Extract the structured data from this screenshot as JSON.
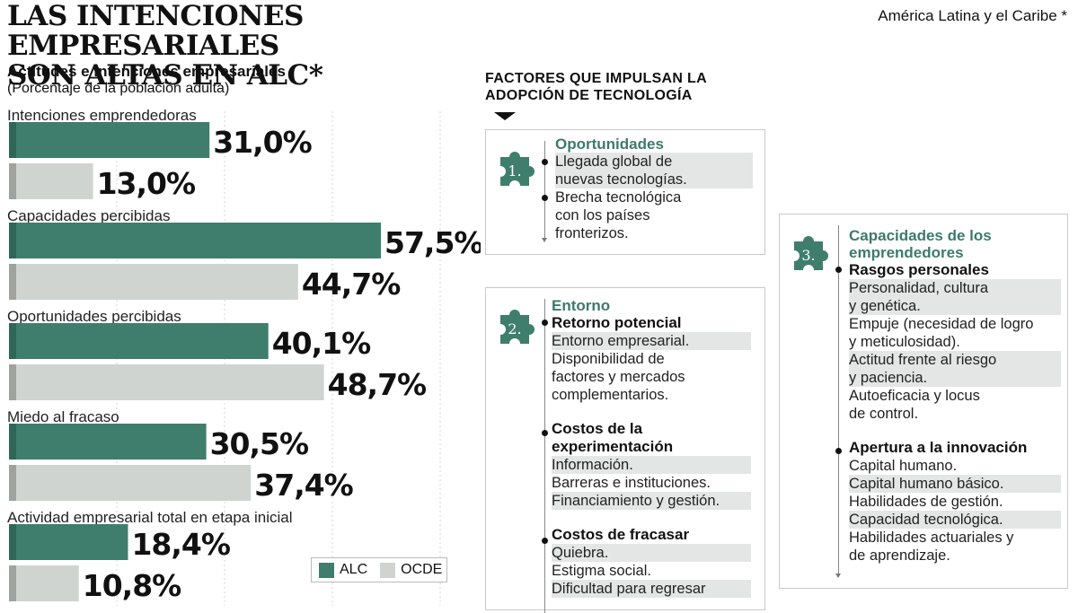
{
  "headline": [
    "LAS INTENCIONES EMPRESARIALES",
    "SON ALTAS EN ALC*"
  ],
  "region_note": "América Latina y el Caribe *",
  "colors": {
    "alc": "#3f7e6c",
    "ocde": "#cfd4d1",
    "accent_text": "#3d7a6b"
  },
  "chart_data": {
    "type": "bar",
    "orientation": "horizontal",
    "title": "Actitudes e intenciones empresariales",
    "subtitle": "(Porcentaje de la población adulta)",
    "categories": [
      "Intenciones emprendedoras",
      "Capacidades percibidas",
      "Oportunidades percibidas",
      "Miedo al fracaso",
      "Actividad empresarial total en etapa inicial"
    ],
    "series": [
      {
        "name": "ALC",
        "values": [
          31.0,
          57.5,
          40.1,
          30.5,
          18.4
        ],
        "labels": [
          "31,0%",
          "57,5%",
          "40,1%",
          "30,5%",
          "18,4%"
        ]
      },
      {
        "name": "OCDE",
        "values": [
          13.0,
          44.7,
          48.7,
          37.4,
          10.8
        ],
        "labels": [
          "13,0%",
          "44,7%",
          "48,7%",
          "37,4%",
          "10,8%"
        ]
      }
    ],
    "xlim": [
      0,
      60
    ],
    "grid": true,
    "legend": "bottom-right"
  },
  "factors": {
    "title_lines": [
      "FACTORES QUE IMPULSAN LA",
      "ADOPCIÓN DE TECNOLOGÍA"
    ],
    "box1": {
      "number": "1.",
      "heading": "Oportunidades",
      "lines": [
        "Llegada global de",
        "nuevas tecnologías.",
        "Brecha tecnológica",
        "con los países",
        "fronterizos."
      ]
    },
    "box2": {
      "number": "2.",
      "heading": "Entorno",
      "g1_head": "Retorno potencial",
      "g1_lines": [
        "Entorno empresarial.",
        "Disponibilidad de",
        "factores y mercados",
        "complementarios."
      ],
      "g2_head_lines": [
        "Costos de la",
        "experimentación"
      ],
      "g2_lines": [
        "Información.",
        "Barreras e instituciones.",
        "Financiamiento y gestión."
      ],
      "g3_head": "Costos de fracasar",
      "g3_lines": [
        "Quiebra.",
        "Estigma social.",
        "Dificultad para regresar"
      ]
    },
    "box3": {
      "number": "3.",
      "heading_lines": [
        "Capacidades de los",
        "emprendedores"
      ],
      "g1_head": "Rasgos personales",
      "g1_lines": [
        "Personalidad, cultura",
        "y genética.",
        "Empuje (necesidad de logro",
        "y meticulosidad).",
        "Actitud frente al riesgo",
        "y paciencia.",
        "Autoeficacia y locus",
        "de control."
      ],
      "g2_head": "Apertura a la innovación",
      "g2_lines": [
        "Capital humano.",
        "Capital humano básico.",
        "Habilidades de gestión.",
        "Capacidad tecnológica.",
        "Habilidades actuariales y",
        "de aprendizaje."
      ]
    }
  }
}
